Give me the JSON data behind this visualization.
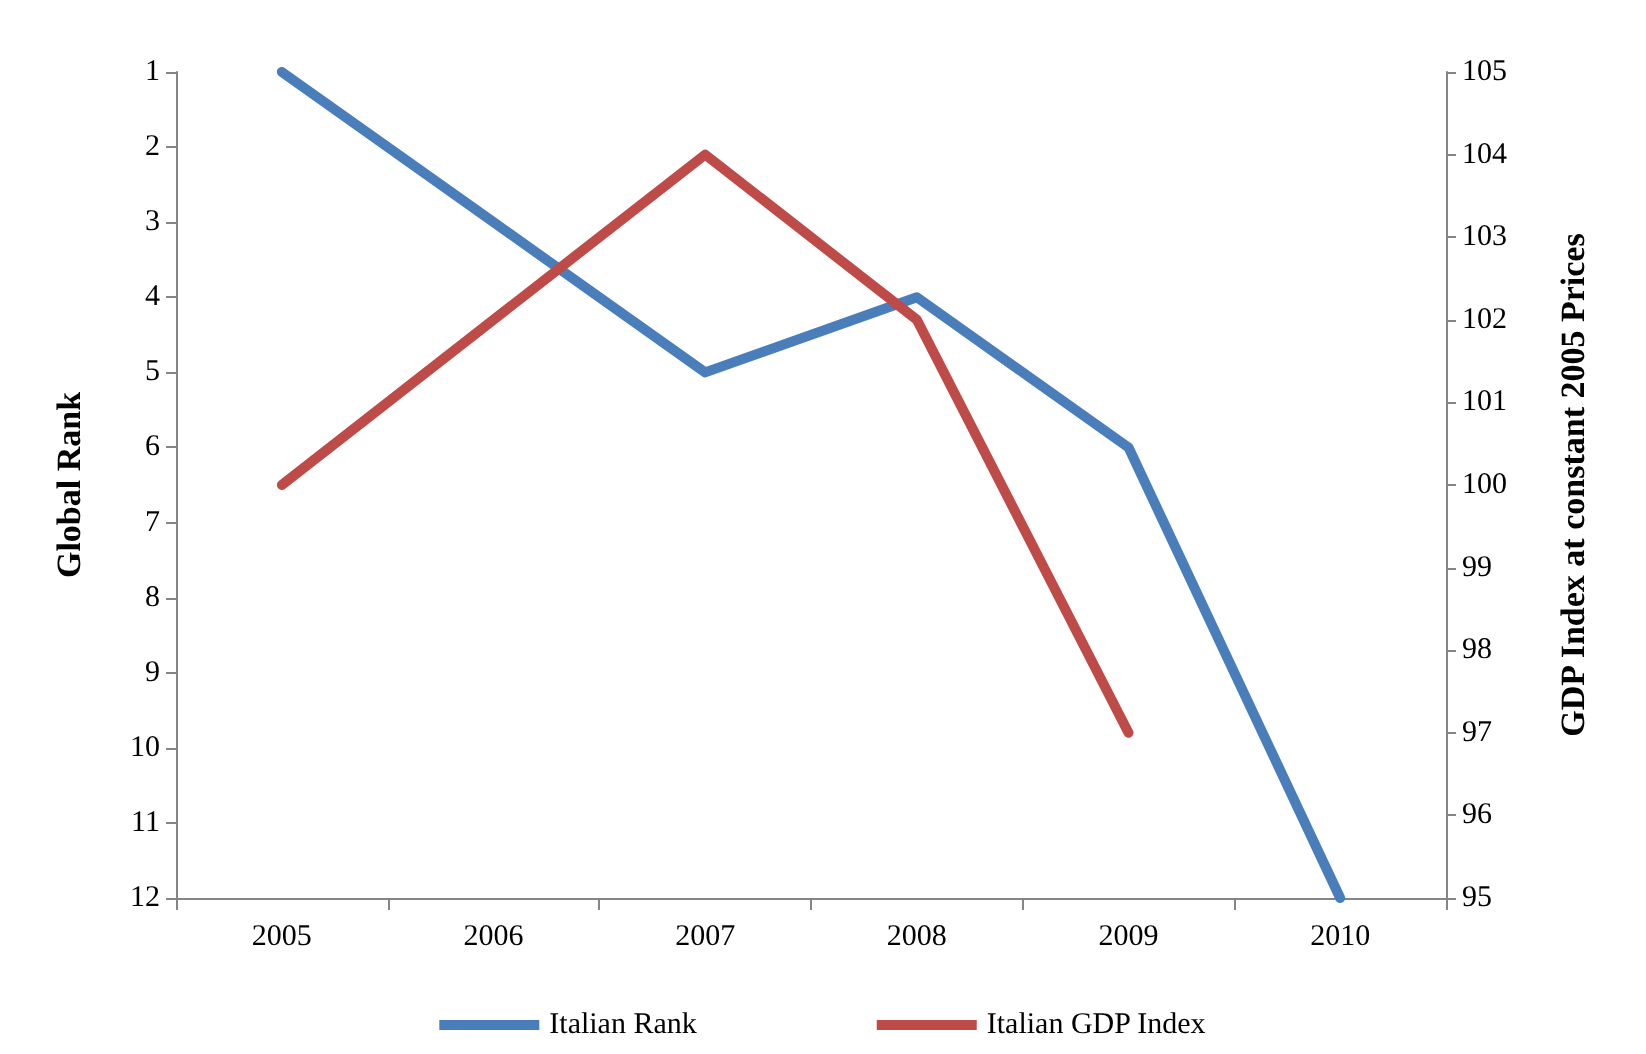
{
  "chart_data": {
    "type": "line",
    "ylabel": "Global Rank",
    "y2label": "GDP Index at constant 2005 Prices",
    "categories": [
      "2005",
      "2006",
      "2007",
      "2008",
      "2009",
      "2010"
    ],
    "series": [
      {
        "name": "Italian Rank",
        "color": "#4a7ebb",
        "values": [
          1,
          3,
          5,
          4,
          6,
          12
        ]
      },
      {
        "name": "Italian GDP Index",
        "color": "#be4b48",
        "axis": "y2",
        "values": [
          100,
          102,
          104,
          102,
          97,
          null
        ]
      }
    ],
    "ylim": [
      12,
      1
    ],
    "yticks": [
      1,
      2,
      3,
      4,
      5,
      6,
      7,
      8,
      9,
      10,
      11,
      12
    ],
    "y2lim": [
      95,
      105
    ],
    "y2ticks": [
      95,
      96,
      97,
      98,
      99,
      100,
      101,
      102,
      103,
      104,
      105
    ],
    "grid": false,
    "legend": "bottom",
    "marker": "none",
    "line_style": "solid"
  }
}
